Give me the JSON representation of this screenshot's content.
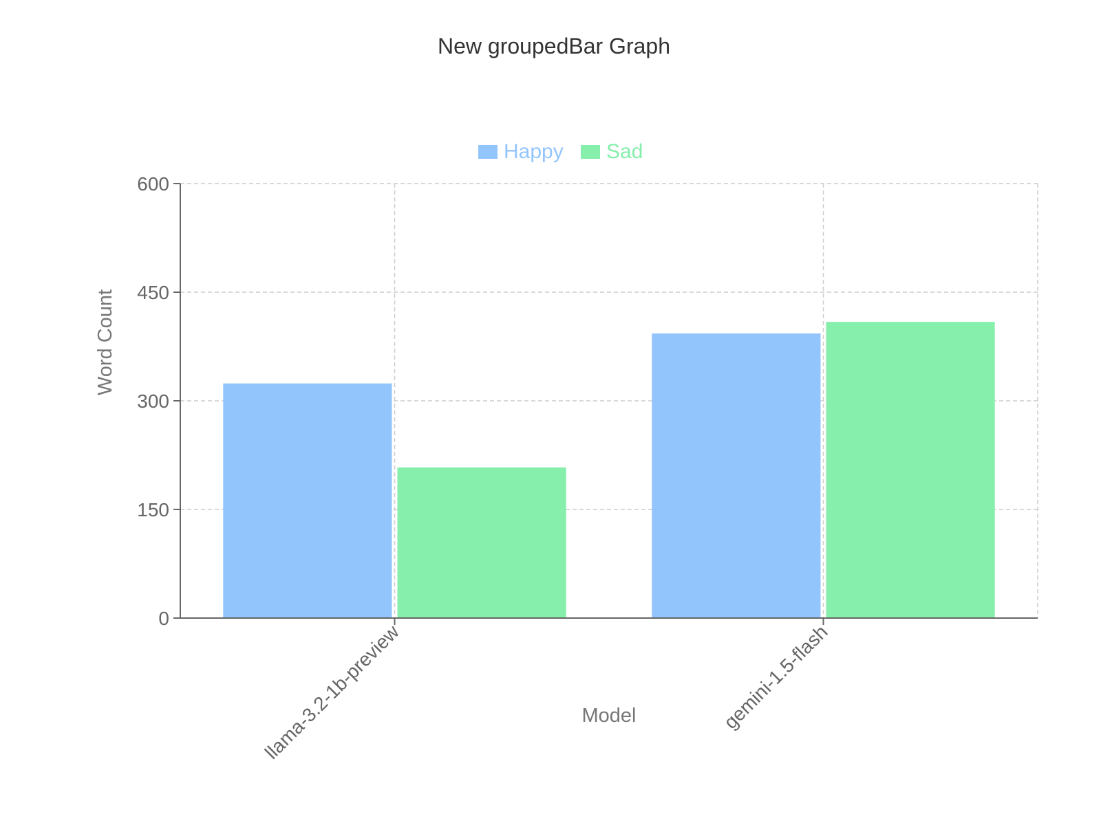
{
  "chart_data": {
    "type": "bar",
    "title": "New groupedBar Graph",
    "xlabel": "Model",
    "ylabel": "Word Count",
    "categories": [
      "llama-3.2-1b-preview",
      "gemini-1.5-flash"
    ],
    "series": [
      {
        "name": "Happy",
        "values": [
          324,
          393
        ],
        "color": "#93c5fd"
      },
      {
        "name": "Sad",
        "values": [
          208,
          409
        ],
        "color": "#86efac"
      }
    ],
    "ylim": [
      0,
      600
    ],
    "yticks": [
      "0",
      "150",
      "300",
      "450",
      "600"
    ],
    "grid": true,
    "legend_position": "top-center"
  }
}
